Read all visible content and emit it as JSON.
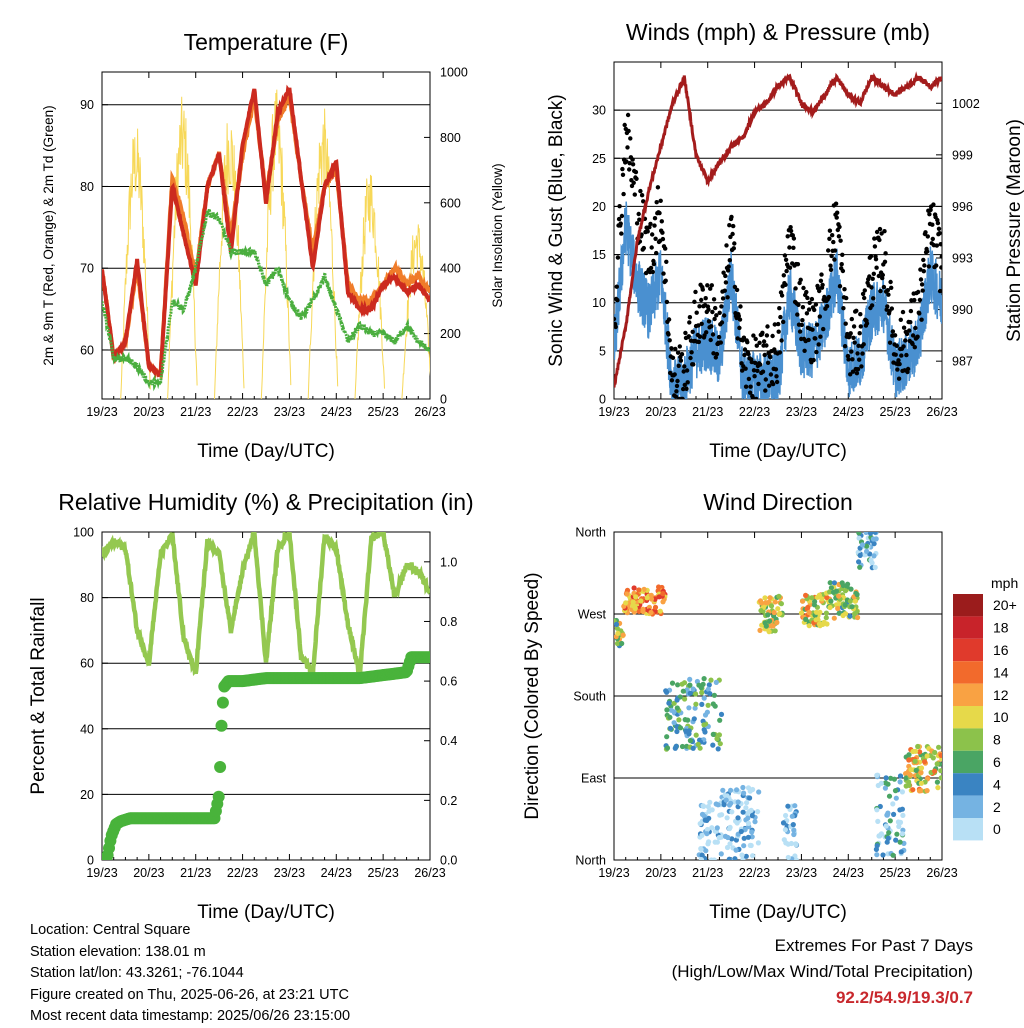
{
  "x_ticks": [
    "19/23",
    "20/23",
    "21/23",
    "22/23",
    "23/23",
    "24/23",
    "25/23",
    "26/23"
  ],
  "colors": {
    "temp_red": "#cc2a1f",
    "temp_orange": "#f07c2a",
    "dewpoint_green": "#4aae3e",
    "solar_yellow": "#f7d858",
    "wind_blue": "#4a90d0",
    "gust_black": "#000000",
    "pressure_maroon": "#a31c1c",
    "rh_green": "#94c850",
    "precip_green": "#49b33b"
  },
  "chart_data": [
    {
      "type": "line",
      "title": "Temperature (F)",
      "xlabel": "Time (Day/UTC)",
      "ylabel": "2m & 9m T (Red, Orange) & 2m Td (Green)",
      "ylabel_right": "Solar Insolation (Yellow)",
      "ylim": [
        54,
        94
      ],
      "yticks": [
        60,
        70,
        80,
        90
      ],
      "ylim_right": [
        0,
        1000
      ],
      "yticks_right": [
        0,
        200,
        400,
        600,
        800,
        1000
      ],
      "x": [
        0,
        0.25,
        0.5,
        0.75,
        1,
        1.25,
        1.5,
        1.75,
        2,
        2.25,
        2.5,
        2.75,
        3,
        3.25,
        3.5,
        3.75,
        4,
        4.25,
        4.5,
        4.75,
        5,
        5.25,
        5.5,
        5.75,
        6,
        6.25,
        6.5,
        6.75,
        7
      ],
      "series": [
        {
          "key": "t2m",
          "values": [
            70,
            59,
            61,
            71,
            58,
            57,
            80,
            74,
            68,
            80,
            84,
            72,
            85,
            92,
            78,
            89,
            92,
            81,
            70,
            80,
            83,
            67,
            65,
            65,
            68,
            69,
            67,
            68,
            66
          ]
        },
        {
          "key": "t9m",
          "values": [
            70,
            59,
            61,
            70,
            58,
            57,
            81,
            76,
            69,
            80,
            84,
            74,
            84,
            91,
            79,
            88,
            91,
            81,
            72,
            80,
            82,
            68,
            66,
            66,
            68,
            70,
            68,
            69,
            67
          ]
        },
        {
          "key": "td2m",
          "values": [
            66,
            59,
            59,
            58,
            56,
            56,
            66,
            65,
            70,
            77,
            76,
            72,
            72,
            72,
            68,
            70,
            66,
            64,
            66,
            69,
            65,
            61,
            63,
            62,
            62,
            61,
            63,
            61,
            60
          ]
        },
        {
          "key": "solar",
          "values": [
            0,
            0,
            0,
            850,
            0,
            0,
            930,
            0,
            0,
            900,
            0,
            0,
            950,
            0,
            0,
            900,
            0,
            0,
            720,
            0,
            0,
            560,
            0,
            0,
            280,
            0,
            0,
            0,
            0
          ]
        }
      ]
    },
    {
      "type": "line",
      "title": "Winds (mph) & Pressure (mb)",
      "xlabel": "Time (Day/UTC)",
      "ylabel": "Sonic Wind & Gust (Blue, Black)",
      "ylabel_right": "Station Pressure (Maroon)",
      "ylim": [
        0,
        35
      ],
      "yticks": [
        0,
        5,
        10,
        15,
        20,
        25,
        30
      ],
      "ylim_right": [
        984.8,
        1004.4
      ],
      "yticks_right": [
        987,
        990,
        993,
        996,
        999,
        1002
      ],
      "x": [
        0,
        0.25,
        0.5,
        0.75,
        1,
        1.25,
        1.5,
        1.75,
        2,
        2.25,
        2.5,
        2.75,
        3,
        3.25,
        3.5,
        3.75,
        4,
        4.25,
        4.5,
        4.75,
        5,
        5.25,
        5.5,
        5.75,
        6,
        6.25,
        6.5,
        6.75,
        7
      ],
      "series": [
        {
          "key": "wind",
          "values": [
            5,
            18,
            12,
            9,
            13,
            1,
            2,
            5,
            6,
            4,
            13,
            2,
            2,
            2,
            2,
            11,
            5,
            5,
            8,
            13,
            3,
            4,
            9,
            10,
            3,
            4,
            6,
            13,
            10
          ]
        },
        {
          "key": "gust",
          "values": [
            8,
            28,
            20,
            15,
            20,
            2,
            3,
            8,
            10,
            6,
            17,
            4,
            3,
            4,
            5,
            17,
            9,
            7,
            11,
            19,
            5,
            6,
            13,
            15,
            5,
            6,
            9,
            18,
            14
          ]
        },
        {
          "key": "pressure",
          "values": [
            985.5,
            989,
            994,
            997,
            999.5,
            1002,
            1003.5,
            999,
            997.5,
            998.5,
            999.5,
            1000,
            1001.5,
            1002,
            1003,
            1003.5,
            1002,
            1001.5,
            1002.5,
            1003.5,
            1002.5,
            1002,
            1003.5,
            1003,
            1002.5,
            1003,
            1003.5,
            1003,
            1003.5
          ]
        }
      ]
    },
    {
      "type": "line",
      "title": "Relative Humidity (%) & Precipitation (in)",
      "xlabel": "Time (Day/UTC)",
      "ylabel": "Percent & Total Rainfall",
      "ylim": [
        0,
        100
      ],
      "yticks": [
        0,
        20,
        40,
        60,
        80,
        100
      ],
      "ylim_right": [
        0,
        1.1
      ],
      "yticks_right": [
        0.0,
        0.2,
        0.4,
        0.6,
        0.8,
        1.0
      ],
      "x": [
        0,
        0.25,
        0.5,
        0.75,
        1,
        1.25,
        1.5,
        1.75,
        2,
        2.25,
        2.5,
        2.75,
        3,
        3.25,
        3.5,
        3.75,
        4,
        4.25,
        4.5,
        4.75,
        5,
        5.25,
        5.5,
        5.75,
        6,
        6.25,
        6.5,
        6.75,
        7
      ],
      "series": [
        {
          "key": "rh",
          "values": [
            93,
            97,
            95,
            70,
            60,
            93,
            99,
            67,
            57,
            97,
            93,
            70,
            88,
            100,
            60,
            95,
            100,
            62,
            57,
            99,
            95,
            72,
            56,
            98,
            100,
            80,
            90,
            88,
            82
          ]
        },
        {
          "key": "precip",
          "x": [
            0,
            0.1,
            0.2,
            0.3,
            0.4,
            0.6,
            0.8,
            1,
            1.5,
            2,
            2.4,
            2.5,
            2.55,
            2.6,
            2.7,
            3,
            3.5,
            4,
            4.5,
            5,
            5.5,
            6,
            6.5,
            6.6,
            7
          ],
          "values": [
            0,
            0,
            0.08,
            0.12,
            0.13,
            0.14,
            0.14,
            0.14,
            0.14,
            0.14,
            0.14,
            0.22,
            0.45,
            0.58,
            0.6,
            0.6,
            0.61,
            0.61,
            0.61,
            0.61,
            0.61,
            0.62,
            0.63,
            0.68,
            0.68
          ]
        }
      ]
    },
    {
      "type": "scatter",
      "title": "Wind Direction",
      "xlabel": "Time (Day/UTC)",
      "ylabel": "Direction (Colored By Speed)",
      "ylim": [
        0,
        360
      ],
      "yticks": [
        0,
        90,
        180,
        270,
        360
      ],
      "ytick_labels": [
        "North",
        "East",
        "South",
        "West",
        "North"
      ],
      "colorbar_title": "mph",
      "colorbar_labels": [
        "20+",
        "18",
        "16",
        "14",
        "12",
        "10",
        "8",
        "6",
        "4",
        "2",
        "0"
      ],
      "colorbar_colors": [
        "#9b1c1c",
        "#c8232a",
        "#e03a2c",
        "#f26a2c",
        "#f9a243",
        "#e6d94a",
        "#8cc24b",
        "#4aa564",
        "#3a84c2",
        "#75b3e2",
        "#b8e0f5"
      ],
      "points_summary": [
        {
          "x_range": [
            0,
            0.2
          ],
          "dir": 250,
          "spread": 15,
          "speed": 8
        },
        {
          "x_range": [
            0.2,
            1.1
          ],
          "dir": 285,
          "spread": 15,
          "speed": 13
        },
        {
          "x_range": [
            1.1,
            2.3
          ],
          "dir": 160,
          "spread": 40,
          "speed": 5
        },
        {
          "x_range": [
            1.8,
            2.3
          ],
          "dir": 30,
          "spread": 35,
          "speed": 1
        },
        {
          "x_range": [
            2.3,
            3.1
          ],
          "dir": 40,
          "spread": 40,
          "speed": 1
        },
        {
          "x_range": [
            3.1,
            3.6
          ],
          "dir": 270,
          "spread": 20,
          "speed": 9
        },
        {
          "x_range": [
            3.6,
            3.9
          ],
          "dir": 30,
          "spread": 30,
          "speed": 1
        },
        {
          "x_range": [
            4.0,
            4.6
          ],
          "dir": 275,
          "spread": 18,
          "speed": 10
        },
        {
          "x_range": [
            4.6,
            5.2
          ],
          "dir": 285,
          "spread": 20,
          "speed": 8
        },
        {
          "x_range": [
            5.2,
            5.6
          ],
          "dir": 340,
          "spread": 20,
          "speed": 2
        },
        {
          "x_range": [
            5.6,
            6.2
          ],
          "dir": 50,
          "spread": 45,
          "speed": 3
        },
        {
          "x_range": [
            6.2,
            7.0
          ],
          "dir": 100,
          "spread": 25,
          "speed": 10
        }
      ]
    }
  ],
  "info": {
    "location": "Location: Central Square",
    "elevation": "Station elevation: 138.01 m",
    "latlon": "Station lat/lon: 43.3261; -76.1044",
    "created": "Figure created on Thu, 2025-06-26, at 23:21 UTC",
    "timestamp": "Most recent data timestamp: 2025/06/26 23:15:00"
  },
  "extremes": {
    "line1": "Extremes For Past 7 Days",
    "line2": "(High/Low/Max Wind/Total Precipitation)",
    "values": "92.2/54.9/19.3/0.7"
  }
}
